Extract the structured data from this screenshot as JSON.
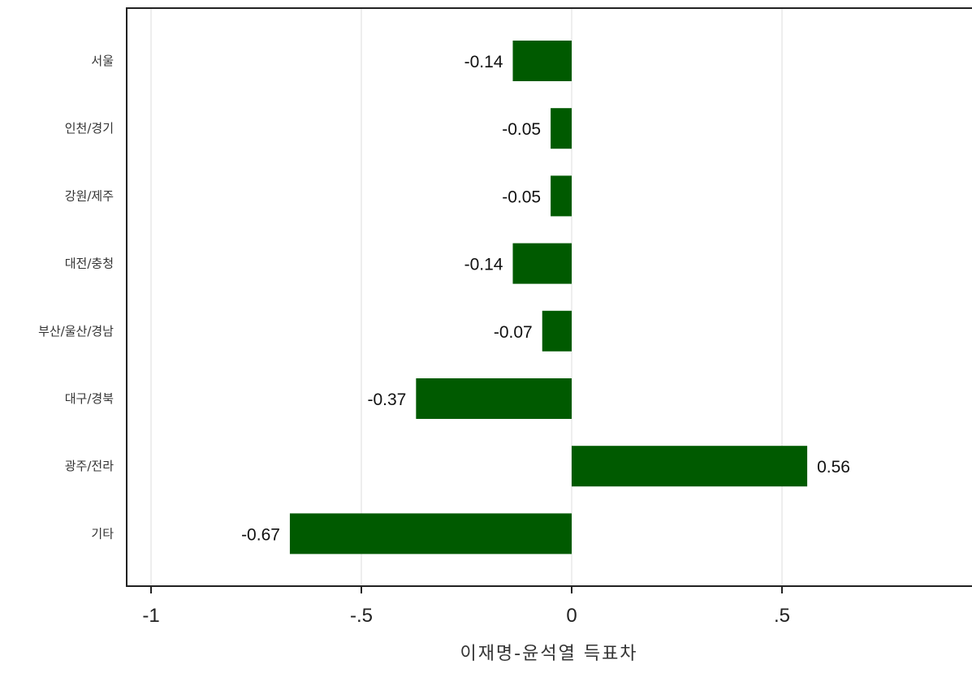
{
  "chart_data": {
    "type": "bar",
    "orientation": "horizontal",
    "categories": [
      "서울",
      "인천/경기",
      "강원/제주",
      "대전/충청",
      "부산/울산/경남",
      "대구/경북",
      "광주/전라",
      "기타"
    ],
    "values": [
      -0.14,
      -0.05,
      -0.05,
      -0.14,
      -0.07,
      -0.37,
      0.56,
      -0.67
    ],
    "value_labels": [
      "-0.14",
      "-0.05",
      "-0.05",
      "-0.14",
      "-0.07",
      "-0.37",
      "0.56",
      "-0.67"
    ],
    "xlabel": "이재명-윤석열 득표차",
    "xlim": [
      -1.06,
      0.96
    ],
    "xticks": [
      -1,
      -0.5,
      0,
      0.5
    ],
    "xtick_labels": [
      "-1",
      "-.5",
      "0",
      ".5"
    ],
    "grid": "vertical",
    "bar_color": "#005a00"
  }
}
